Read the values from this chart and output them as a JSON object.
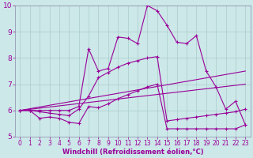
{
  "xlabel": "Windchill (Refroidissement éolien,°C)",
  "bg_color": "#cce8e8",
  "grid_color": "#aacccc",
  "line_color": "#990099",
  "xlim": [
    -0.5,
    23.5
  ],
  "ylim": [
    5.0,
    10.0
  ],
  "xticks": [
    0,
    1,
    2,
    3,
    4,
    5,
    6,
    7,
    8,
    9,
    10,
    11,
    12,
    13,
    14,
    15,
    16,
    17,
    18,
    19,
    20,
    21,
    22,
    23
  ],
  "yticks": [
    5,
    6,
    7,
    8,
    9,
    10
  ],
  "series": {
    "line_main": {
      "x": [
        0,
        1,
        2,
        3,
        4,
        5,
        6,
        7,
        8,
        9,
        10,
        11,
        12,
        13,
        14,
        15,
        16,
        17,
        18,
        19,
        20,
        21,
        22,
        23
      ],
      "y": [
        6.0,
        6.0,
        6.0,
        6.0,
        6.0,
        6.0,
        6.15,
        8.35,
        7.5,
        7.6,
        8.8,
        8.75,
        8.55,
        10.0,
        9.8,
        9.25,
        8.6,
        8.55,
        8.85,
        7.5,
        6.9,
        6.05,
        6.35,
        5.45
      ]
    },
    "line_mid": {
      "x": [
        0,
        1,
        2,
        3,
        4,
        5,
        6,
        7,
        8,
        9,
        10,
        11,
        12,
        13,
        14,
        15,
        16,
        17,
        18,
        19,
        20,
        21,
        22,
        23
      ],
      "y": [
        6.0,
        6.0,
        5.95,
        5.9,
        5.85,
        5.8,
        6.05,
        6.55,
        7.25,
        7.45,
        7.65,
        7.8,
        7.9,
        8.0,
        8.05,
        5.6,
        5.65,
        5.7,
        5.75,
        5.8,
        5.85,
        5.9,
        5.95,
        6.05
      ]
    },
    "line_low": {
      "x": [
        0,
        1,
        2,
        3,
        4,
        5,
        6,
        7,
        8,
        9,
        10,
        11,
        12,
        13,
        14,
        15,
        16,
        17,
        18,
        19,
        20,
        21,
        22,
        23
      ],
      "y": [
        6.0,
        6.0,
        5.7,
        5.75,
        5.7,
        5.55,
        5.5,
        6.15,
        6.1,
        6.25,
        6.45,
        6.6,
        6.75,
        6.9,
        7.0,
        5.3,
        5.3,
        5.3,
        5.3,
        5.3,
        5.3,
        5.3,
        5.3,
        5.45
      ]
    },
    "line_diag1": {
      "x": [
        0,
        23
      ],
      "y": [
        6.0,
        7.5
      ]
    },
    "line_diag2": {
      "x": [
        0,
        23
      ],
      "y": [
        6.0,
        7.0
      ]
    }
  }
}
